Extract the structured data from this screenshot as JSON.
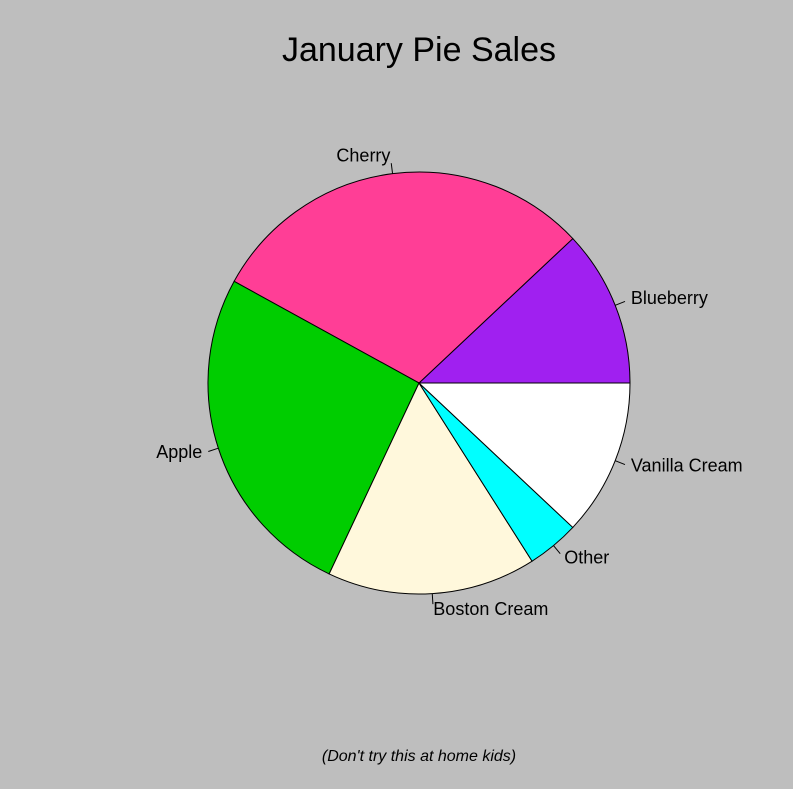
{
  "chart_data": {
    "type": "pie",
    "title": "January Pie Sales",
    "subtitle": "(Don't try this at home kids)",
    "categories": [
      "Blueberry",
      "Cherry",
      "Apple",
      "Boston Cream",
      "Other",
      "Vanilla Cream"
    ],
    "values": [
      12,
      30,
      26,
      16,
      4,
      12
    ],
    "colors": [
      "#a020f0",
      "#ff3e96",
      "#00cd00",
      "#fff8dc",
      "#00ffff",
      "#ffffff"
    ],
    "start_angle": 0,
    "direction": "counterclockwise"
  }
}
